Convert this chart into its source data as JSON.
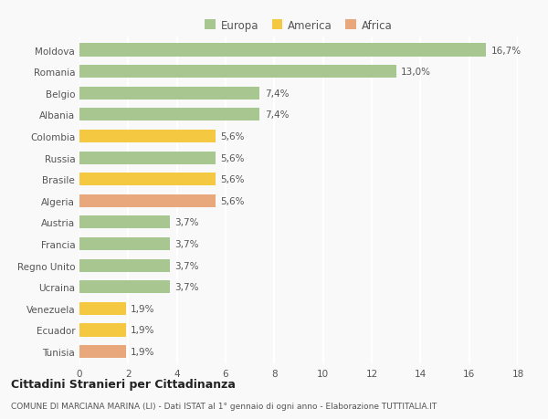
{
  "categories": [
    "Moldova",
    "Romania",
    "Belgio",
    "Albania",
    "Colombia",
    "Russia",
    "Brasile",
    "Algeria",
    "Austria",
    "Francia",
    "Regno Unito",
    "Ucraina",
    "Venezuela",
    "Ecuador",
    "Tunisia"
  ],
  "values": [
    16.7,
    13.0,
    7.4,
    7.4,
    5.6,
    5.6,
    5.6,
    5.6,
    3.7,
    3.7,
    3.7,
    3.7,
    1.9,
    1.9,
    1.9
  ],
  "labels": [
    "16,7%",
    "13,0%",
    "7,4%",
    "7,4%",
    "5,6%",
    "5,6%",
    "5,6%",
    "5,6%",
    "3,7%",
    "3,7%",
    "3,7%",
    "3,7%",
    "1,9%",
    "1,9%",
    "1,9%"
  ],
  "continent": [
    "Europa",
    "Europa",
    "Europa",
    "Europa",
    "America",
    "Europa",
    "America",
    "Africa",
    "Europa",
    "Europa",
    "Europa",
    "Europa",
    "America",
    "America",
    "Africa"
  ],
  "colors": {
    "Europa": "#a8c68f",
    "America": "#f5c842",
    "Africa": "#e8a87c"
  },
  "background_color": "#f9f9f9",
  "xlim": [
    0,
    18
  ],
  "xticks": [
    0,
    2,
    4,
    6,
    8,
    10,
    12,
    14,
    16,
    18
  ],
  "title": "Cittadini Stranieri per Cittadinanza",
  "subtitle": "COMUNE DI MARCIANA MARINA (LI) - Dati ISTAT al 1° gennaio di ogni anno - Elaborazione TUTTITALIA.IT",
  "grid_color": "#ffffff",
  "bar_height": 0.6,
  "label_fontsize": 7.5,
  "tick_fontsize": 7.5,
  "legend_entries": [
    "Europa",
    "America",
    "Africa"
  ]
}
